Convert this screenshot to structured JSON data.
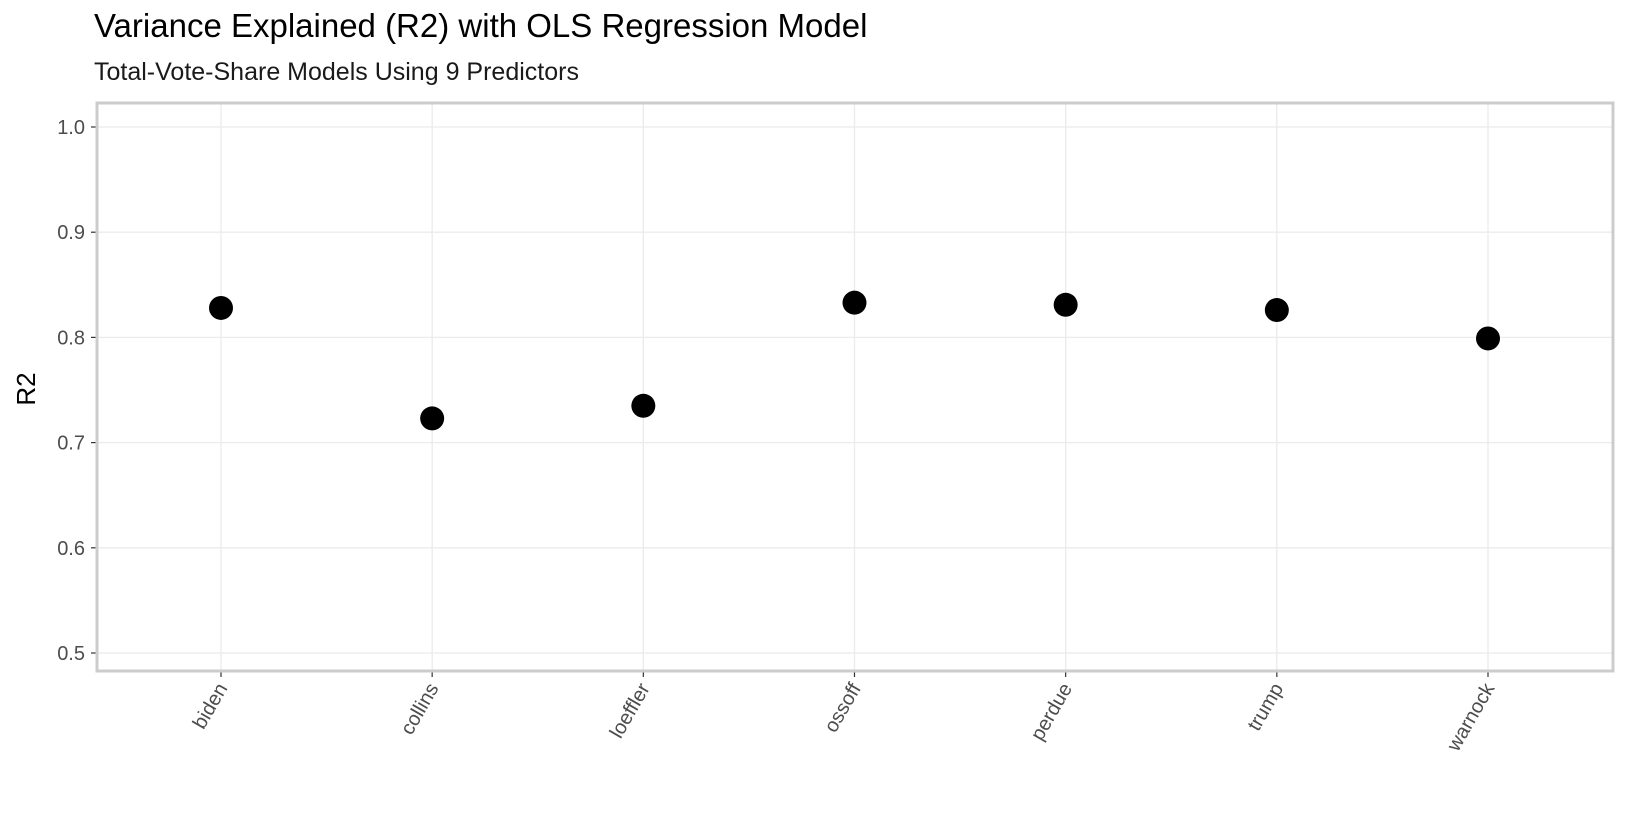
{
  "chart_data": {
    "type": "scatter",
    "title": "Variance Explained (R2) with OLS Regression Model",
    "subtitle": "Total-Vote-Share Models Using 9 Predictors",
    "xlabel": "",
    "ylabel": "R2",
    "categories": [
      "biden",
      "collins",
      "loeffler",
      "ossoff",
      "perdue",
      "trump",
      "warnock"
    ],
    "values": [
      0.828,
      0.723,
      0.735,
      0.833,
      0.831,
      0.826,
      0.799
    ],
    "ylim": [
      0.5,
      1.0
    ],
    "yticks": [
      "0.5",
      "0.6",
      "0.7",
      "0.8",
      "0.9",
      "1.0"
    ],
    "grid": true,
    "legend": "none",
    "point_color": "#000000",
    "grid_color": "#ebebeb",
    "border_color": "#cccccc"
  }
}
